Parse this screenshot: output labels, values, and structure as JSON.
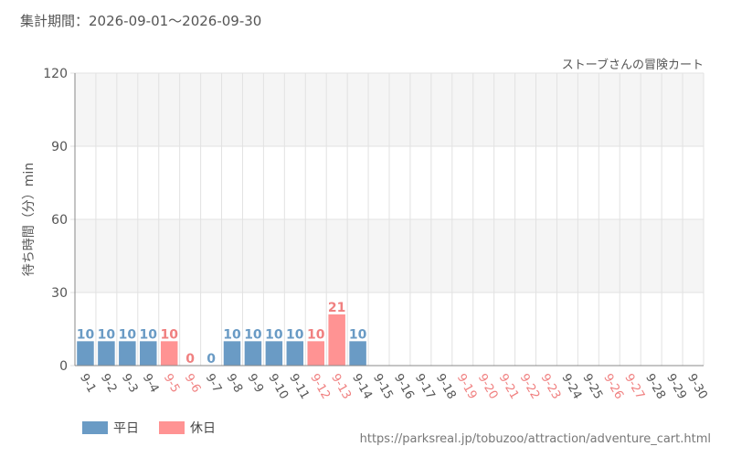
{
  "header": {
    "period": "集計期間：2026-09-01～2026-09-30",
    "attraction": "ストーブさんの冒険カート"
  },
  "legend": {
    "weekday_label": "平日",
    "holiday_label": "休日"
  },
  "footer": {
    "source_url": "https://parksreal.jp/tobuzoo/attraction/adventure_cart.html"
  },
  "colors": {
    "weekday": "#6a9bc5",
    "holiday": "#ff9393",
    "holiday_label": "#f08080",
    "axis_text": "#555555"
  },
  "chart_data": {
    "type": "bar",
    "title": "",
    "ylabel": "待ち時間（分）min",
    "xlabel": "",
    "ylim": [
      0,
      120
    ],
    "yticks": [
      0,
      30,
      60,
      90,
      120
    ],
    "grid": true,
    "legend_position": "bottom-left",
    "categories": [
      "9-1",
      "9-2",
      "9-3",
      "9-4",
      "9-5",
      "9-6",
      "9-7",
      "9-8",
      "9-9",
      "9-10",
      "9-11",
      "9-12",
      "9-13",
      "9-14",
      "9-15",
      "9-16",
      "9-17",
      "9-18",
      "9-19",
      "9-20",
      "9-21",
      "9-22",
      "9-23",
      "9-24",
      "9-25",
      "9-26",
      "9-27",
      "9-28",
      "9-29",
      "9-30"
    ],
    "values": [
      10,
      10,
      10,
      10,
      10,
      0,
      0,
      10,
      10,
      10,
      10,
      10,
      21,
      10,
      null,
      null,
      null,
      null,
      null,
      null,
      null,
      null,
      null,
      null,
      null,
      null,
      null,
      null,
      null,
      null
    ],
    "day_type": [
      "weekday",
      "weekday",
      "weekday",
      "weekday",
      "holiday",
      "holiday",
      "weekday",
      "weekday",
      "weekday",
      "weekday",
      "weekday",
      "holiday",
      "holiday",
      "weekday",
      "weekday",
      "weekday",
      "weekday",
      "weekday",
      "holiday",
      "holiday",
      "holiday",
      "holiday",
      "holiday",
      "weekday",
      "weekday",
      "holiday",
      "holiday",
      "weekday",
      "weekday",
      "weekday"
    ]
  }
}
